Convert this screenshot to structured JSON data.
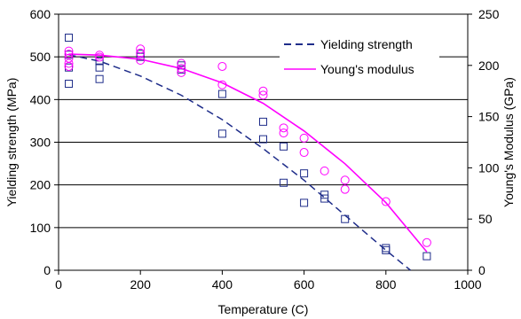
{
  "chart_data": {
    "type": "scatter",
    "xlabel": "Temperature (C)",
    "ylabel": "Yielding strength (MPa)",
    "y2label": "Young's Modulus (GPa)",
    "xlim": [
      0,
      1000
    ],
    "ylim": [
      0,
      600
    ],
    "y2lim": [
      0,
      250
    ],
    "x_ticks": [
      "0",
      "200",
      "400",
      "600",
      "800",
      "1000"
    ],
    "y_ticks": [
      "0",
      "100",
      "200",
      "300",
      "400",
      "500",
      "600"
    ],
    "y2_ticks": [
      "0",
      "50",
      "100",
      "150",
      "200",
      "250"
    ],
    "grid": "horizontal",
    "legend": {
      "position": "top-right",
      "entries": [
        {
          "label": "Yielding strength",
          "color": "#1f2d8a",
          "style": "dashed"
        },
        {
          "label": "Young's modulus",
          "color": "#ff00ff",
          "style": "solid"
        }
      ]
    },
    "series": [
      {
        "name": "Yielding strength",
        "axis": "left",
        "marker": "square",
        "color": "#1f2d8a",
        "points": [
          [
            25,
            545
          ],
          [
            25,
            505
          ],
          [
            25,
            475
          ],
          [
            25,
            437
          ],
          [
            100,
            490
          ],
          [
            100,
            475
          ],
          [
            100,
            448
          ],
          [
            200,
            507
          ],
          [
            200,
            500
          ],
          [
            300,
            480
          ],
          [
            300,
            470
          ],
          [
            400,
            413
          ],
          [
            400,
            320
          ],
          [
            500,
            348
          ],
          [
            500,
            307
          ],
          [
            550,
            290
          ],
          [
            550,
            205
          ],
          [
            600,
            227
          ],
          [
            600,
            158
          ],
          [
            650,
            177
          ],
          [
            650,
            168
          ],
          [
            700,
            120
          ],
          [
            800,
            52
          ],
          [
            800,
            47
          ],
          [
            900,
            33
          ]
        ],
        "fit": [
          [
            25,
            505
          ],
          [
            100,
            490
          ],
          [
            200,
            455
          ],
          [
            300,
            410
          ],
          [
            400,
            353
          ],
          [
            500,
            285
          ],
          [
            600,
            211
          ],
          [
            700,
            129
          ],
          [
            800,
            47
          ],
          [
            860,
            0
          ]
        ]
      },
      {
        "name": "Young's modulus",
        "axis": "right",
        "marker": "circle",
        "color": "#ff00ff",
        "points": [
          [
            25,
            214
          ],
          [
            25,
            211
          ],
          [
            25,
            207
          ],
          [
            25,
            202
          ],
          [
            25,
            199
          ],
          [
            100,
            210
          ],
          [
            100,
            208
          ],
          [
            200,
            216
          ],
          [
            200,
            212
          ],
          [
            200,
            205
          ],
          [
            300,
            202
          ],
          [
            300,
            197
          ],
          [
            300,
            193
          ],
          [
            400,
            199
          ],
          [
            400,
            181
          ],
          [
            500,
            175
          ],
          [
            500,
            171
          ],
          [
            550,
            139
          ],
          [
            550,
            134
          ],
          [
            600,
            129
          ],
          [
            600,
            115
          ],
          [
            650,
            97
          ],
          [
            700,
            88
          ],
          [
            700,
            79
          ],
          [
            800,
            67
          ],
          [
            900,
            27
          ]
        ],
        "fit": [
          [
            25,
            211
          ],
          [
            100,
            210
          ],
          [
            200,
            206
          ],
          [
            300,
            197
          ],
          [
            400,
            183
          ],
          [
            500,
            163
          ],
          [
            600,
            136
          ],
          [
            700,
            104
          ],
          [
            800,
            66
          ],
          [
            900,
            18
          ]
        ]
      }
    ]
  }
}
